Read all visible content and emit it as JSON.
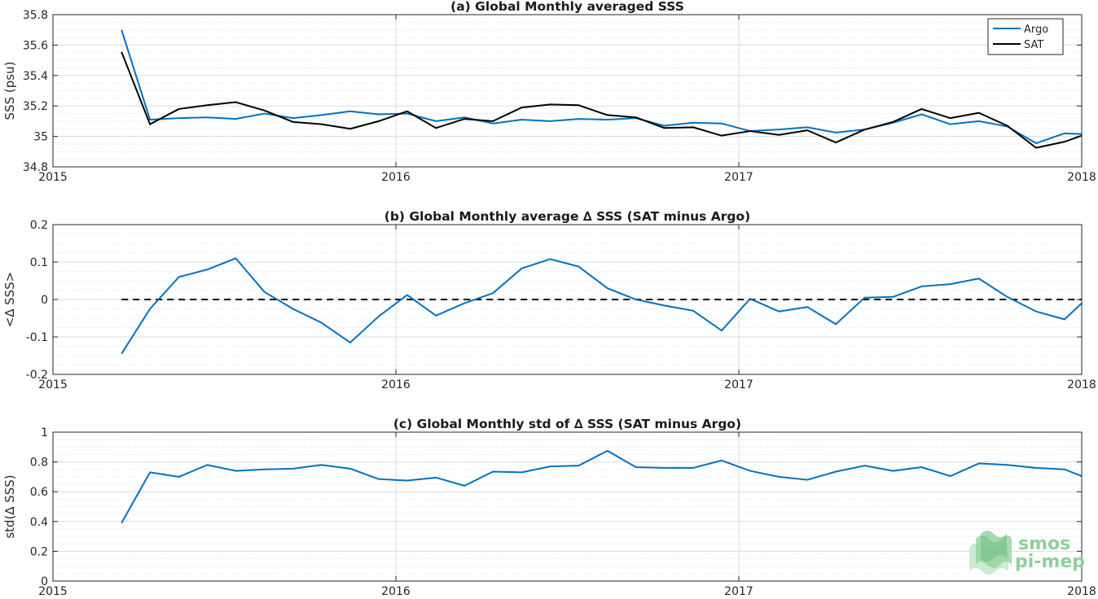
{
  "chart_data": [
    {
      "type": "line",
      "title": "(a) Global Monthly averaged SSS",
      "xlabel": "",
      "ylabel": "SSS (psu)",
      "xlim": [
        2015,
        2018
      ],
      "ylim": [
        34.8,
        35.8
      ],
      "yticks": [
        34.8,
        35,
        35.2,
        35.4,
        35.6,
        35.8
      ],
      "ytick_labels": [
        "34.8",
        "35",
        "35.2",
        "35.4",
        "35.6",
        "35.8"
      ],
      "xticks": [
        2015,
        2016,
        2017,
        2018
      ],
      "xtick_labels": [
        "2015",
        "2016",
        "2017",
        "2018"
      ],
      "grid": true,
      "legend": "top-right",
      "x": [
        2015.2,
        2015.283,
        2015.367,
        2015.45,
        2015.533,
        2015.617,
        2015.7,
        2015.783,
        2015.867,
        2015.95,
        2016.033,
        2016.117,
        2016.2,
        2016.283,
        2016.367,
        2016.45,
        2016.533,
        2016.617,
        2016.7,
        2016.783,
        2016.867,
        2016.95,
        2017.033,
        2017.117,
        2017.2,
        2017.283,
        2017.367,
        2017.45,
        2017.533,
        2017.617,
        2017.7,
        2017.783,
        2017.867,
        2017.95,
        2018.0
      ],
      "series": [
        {
          "name": "Argo",
          "color": "#0072bd",
          "values": [
            35.7,
            35.11,
            35.12,
            35.125,
            35.115,
            35.15,
            35.12,
            35.14,
            35.165,
            35.145,
            35.15,
            35.1,
            35.125,
            35.085,
            35.11,
            35.1,
            35.115,
            35.11,
            35.12,
            35.07,
            35.09,
            35.085,
            35.035,
            35.045,
            35.06,
            35.025,
            35.045,
            35.09,
            35.145,
            35.08,
            35.1,
            35.065,
            34.955,
            35.02,
            35.015
          ]
        },
        {
          "name": "SAT",
          "color": "#000000",
          "values": [
            35.555,
            35.08,
            35.18,
            35.205,
            35.225,
            35.17,
            35.095,
            35.08,
            35.05,
            35.1,
            35.165,
            35.055,
            35.115,
            35.1,
            35.19,
            35.21,
            35.205,
            35.14,
            35.125,
            35.055,
            35.06,
            35.005,
            35.035,
            35.01,
            35.04,
            34.96,
            35.045,
            35.095,
            35.18,
            35.12,
            35.155,
            35.07,
            34.925,
            34.965,
            35.005
          ]
        }
      ]
    },
    {
      "type": "line",
      "title": "(b) Global Monthly average ∆ SSS (SAT minus Argo)",
      "xlabel": "",
      "ylabel": "<∆ SSS>",
      "xlim": [
        2015,
        2018
      ],
      "ylim": [
        -0.2,
        0.2
      ],
      "yticks": [
        -0.2,
        -0.1,
        0,
        0.1,
        0.2
      ],
      "ytick_labels": [
        "-0.2",
        "-0.1",
        "0",
        "0.1",
        "0.2"
      ],
      "xticks": [
        2015,
        2016,
        2017,
        2018
      ],
      "xtick_labels": [
        "2015",
        "2016",
        "2017",
        "2018"
      ],
      "grid": true,
      "zero_line": 0,
      "x": [
        2015.2,
        2015.283,
        2015.367,
        2015.45,
        2015.533,
        2015.617,
        2015.7,
        2015.783,
        2015.867,
        2015.95,
        2016.033,
        2016.117,
        2016.2,
        2016.283,
        2016.367,
        2016.45,
        2016.533,
        2016.617,
        2016.7,
        2016.783,
        2016.867,
        2016.95,
        2017.033,
        2017.117,
        2017.2,
        2017.283,
        2017.367,
        2017.45,
        2017.533,
        2017.617,
        2017.7,
        2017.783,
        2017.867,
        2017.95,
        2018.0
      ],
      "series": [
        {
          "color": "#0072bd",
          "values": [
            -0.145,
            -0.025,
            0.06,
            0.08,
            0.11,
            0.02,
            -0.025,
            -0.062,
            -0.115,
            -0.045,
            0.012,
            -0.043,
            -0.01,
            0.017,
            0.083,
            0.108,
            0.088,
            0.03,
            0.0,
            -0.016,
            -0.03,
            -0.083,
            0.002,
            -0.032,
            -0.02,
            -0.066,
            0.005,
            0.007,
            0.035,
            0.041,
            0.056,
            0.007,
            -0.032,
            -0.053,
            -0.01
          ]
        }
      ]
    },
    {
      "type": "line",
      "title": "(c) Global Monthly std of ∆ SSS (SAT minus Argo)",
      "xlabel": "",
      "ylabel": "std(∆ SSS)",
      "xlim": [
        2015,
        2018
      ],
      "ylim": [
        0,
        1
      ],
      "yticks": [
        0,
        0.2,
        0.4,
        0.6,
        0.8,
        1
      ],
      "ytick_labels": [
        "0",
        "0.2",
        "0.4",
        "0.6",
        "0.8",
        "1"
      ],
      "xticks": [
        2015,
        2016,
        2017,
        2018
      ],
      "xtick_labels": [
        "2015",
        "2016",
        "2017",
        "2018"
      ],
      "grid": true,
      "x": [
        2015.2,
        2015.283,
        2015.367,
        2015.45,
        2015.533,
        2015.617,
        2015.7,
        2015.783,
        2015.867,
        2015.95,
        2016.033,
        2016.117,
        2016.2,
        2016.283,
        2016.367,
        2016.45,
        2016.533,
        2016.617,
        2016.7,
        2016.783,
        2016.867,
        2016.95,
        2017.033,
        2017.117,
        2017.2,
        2017.283,
        2017.367,
        2017.45,
        2017.533,
        2017.617,
        2017.7,
        2017.783,
        2017.867,
        2017.95,
        2018.0
      ],
      "series": [
        {
          "color": "#0072bd",
          "values": [
            0.39,
            0.73,
            0.7,
            0.78,
            0.74,
            0.75,
            0.755,
            0.78,
            0.755,
            0.685,
            0.675,
            0.695,
            0.64,
            0.735,
            0.73,
            0.77,
            0.775,
            0.875,
            0.765,
            0.76,
            0.76,
            0.81,
            0.74,
            0.7,
            0.68,
            0.735,
            0.775,
            0.74,
            0.765,
            0.705,
            0.79,
            0.78,
            0.76,
            0.75,
            0.705
          ]
        }
      ]
    }
  ],
  "logo": {
    "line1": "smos",
    "line2": "pi-mep",
    "colors": [
      "#8fcf9c",
      "#bfe6c6"
    ]
  }
}
